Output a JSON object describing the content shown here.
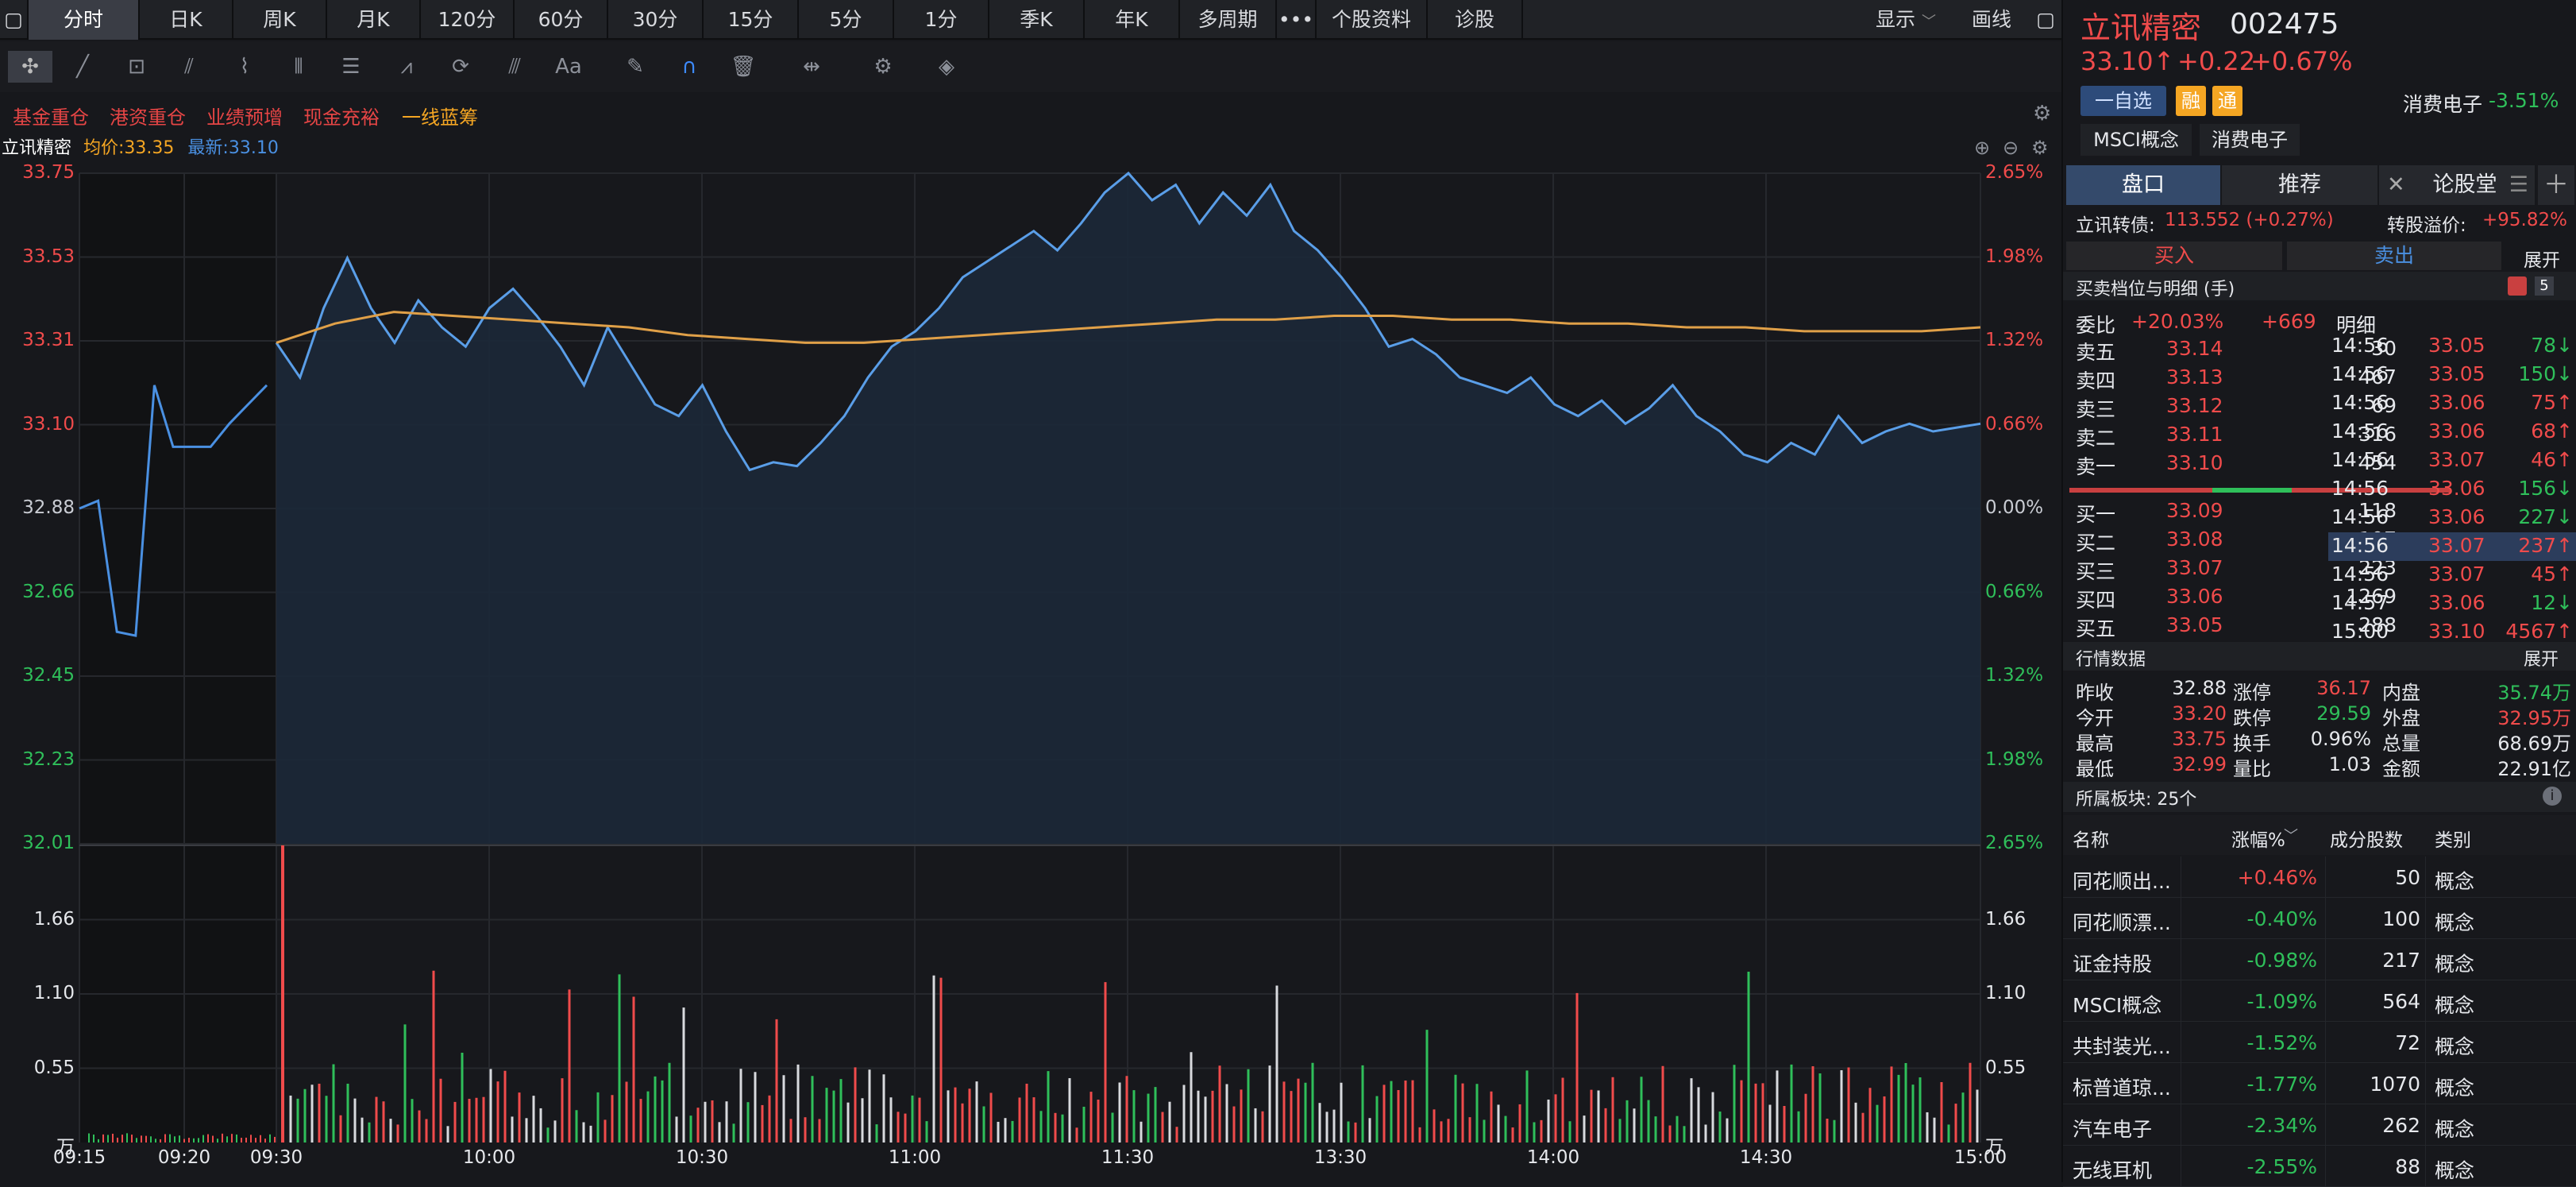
{
  "tabs": [
    "分时",
    "日K",
    "周K",
    "月K",
    "120分",
    "60分",
    "30分",
    "15分",
    "5分",
    "1分",
    "季K",
    "年K",
    "多周期",
    "•••",
    "个股资料",
    "诊股"
  ],
  "toolbar_right": {
    "display": "显示",
    "draw": "画线"
  },
  "tags": [
    "基金重仓",
    "港资重仓",
    "业绩预增",
    "现金充裕",
    "一线蓝筹"
  ],
  "chart": {
    "name": "立讯精密",
    "avg_label": "均价:33.35",
    "latest_label": "最新:33.10",
    "price_ticks": [
      "33.75",
      "33.53",
      "33.31",
      "33.10",
      "32.88",
      "32.66",
      "32.45",
      "32.23",
      "32.01"
    ],
    "pct_ticks": [
      "2.65%",
      "1.98%",
      "1.32%",
      "0.66%",
      "0.00%",
      "0.66%",
      "1.32%",
      "1.98%",
      "2.65%"
    ],
    "vol_ticks": [
      "1.66",
      "1.10",
      "0.55",
      "万"
    ],
    "time_ticks": [
      "09:15",
      "09:20",
      "09:30",
      "10:00",
      "10:30",
      "11:00",
      "11:30",
      "13:30",
      "14:00",
      "14:30",
      "15:00"
    ]
  },
  "chart_data": {
    "type": "line",
    "title": "",
    "prev_close": 32.88,
    "ylim": [
      32.01,
      33.75
    ],
    "price_series": [
      33.31,
      33.22,
      33.4,
      33.53,
      33.4,
      33.31,
      33.42,
      33.35,
      33.3,
      33.4,
      33.45,
      33.38,
      33.3,
      33.2,
      33.35,
      33.25,
      33.15,
      33.12,
      33.2,
      33.08,
      32.98,
      33.0,
      32.99,
      33.05,
      33.12,
      33.22,
      33.3,
      33.34,
      33.4,
      33.48,
      33.52,
      33.56,
      33.6,
      33.55,
      33.62,
      33.7,
      33.75,
      33.68,
      33.72,
      33.62,
      33.7,
      33.64,
      33.72,
      33.6,
      33.55,
      33.48,
      33.4,
      33.3,
      33.32,
      33.28,
      33.22,
      33.2,
      33.18,
      33.22,
      33.15,
      33.12,
      33.16,
      33.1,
      33.14,
      33.2,
      33.12,
      33.08,
      33.02,
      33.0,
      33.05,
      33.02,
      33.12,
      33.05,
      33.08,
      33.1,
      33.08,
      33.09,
      33.1
    ],
    "avg_series": [
      33.31,
      33.36,
      33.39,
      33.38,
      33.37,
      33.36,
      33.35,
      33.33,
      33.32,
      33.31,
      33.31,
      33.32,
      33.33,
      33.34,
      33.35,
      33.36,
      33.37,
      33.37,
      33.38,
      33.38,
      33.37,
      33.37,
      33.36,
      33.36,
      33.35,
      33.35,
      33.34,
      33.34,
      33.34,
      33.35
    ],
    "auction_series": [
      32.88,
      32.9,
      32.56,
      32.55,
      33.2,
      33.04,
      33.04,
      33.04,
      33.1,
      33.15,
      33.2
    ],
    "volume_max_label": "1.66"
  },
  "right": {
    "name": "立讯精密",
    "code": "002475",
    "price": "33.10↑",
    "change": "+0.22",
    "pct": "+0.67%",
    "watch_btn": "一自选",
    "rong": "融",
    "tong": "通",
    "sector": "消费电子",
    "sector_pct": "-3.51%",
    "concept1": "MSCI概念",
    "concept2": "消费电子",
    "tabs": [
      "盘口",
      "推荐",
      "论股堂"
    ],
    "bond_label": "立讯转债:",
    "bond_val": "113.552 (+0.27%)",
    "premium_label": "转股溢价:",
    "premium_val": "+95.82%",
    "buy": "买入",
    "sell": "卖出",
    "expand": "展开",
    "depth_title": "买卖档位与明细 (手)",
    "depth_n": "5",
    "weibi_label": "委比",
    "weibi_val": "+20.03%",
    "weicha": "+669",
    "detail_label": "明细",
    "asks": [
      {
        "l": "卖五",
        "p": "33.14",
        "v": "30"
      },
      {
        "l": "卖四",
        "p": "33.13",
        "v": "467"
      },
      {
        "l": "卖三",
        "p": "33.12",
        "v": "69"
      },
      {
        "l": "卖二",
        "p": "33.11",
        "v": "316"
      },
      {
        "l": "卖一",
        "p": "33.10",
        "v": "454"
      }
    ],
    "bids": [
      {
        "l": "买一",
        "p": "33.09",
        "v": "118"
      },
      {
        "l": "买二",
        "p": "33.08",
        "v": "107"
      },
      {
        "l": "买三",
        "p": "33.07",
        "v": "223"
      },
      {
        "l": "买四",
        "p": "33.06",
        "v": "1269"
      },
      {
        "l": "买五",
        "p": "33.05",
        "v": "288"
      }
    ],
    "ticks": [
      {
        "t": "14:56",
        "p": "33.05",
        "v": "78↓"
      },
      {
        "t": "14:56",
        "p": "33.05",
        "v": "150↓"
      },
      {
        "t": "14:56",
        "p": "33.06",
        "v": "75↑"
      },
      {
        "t": "14:56",
        "p": "33.06",
        "v": "68↑"
      },
      {
        "t": "14:56",
        "p": "33.07",
        "v": "46↑"
      },
      {
        "t": "14:56",
        "p": "33.06",
        "v": "156↓"
      },
      {
        "t": "14:56",
        "p": "33.06",
        "v": "227↓"
      },
      {
        "t": "14:56",
        "p": "33.07",
        "v": "237↑"
      },
      {
        "t": "14:56",
        "p": "33.07",
        "v": "45↑"
      },
      {
        "t": "14:57",
        "p": "33.06",
        "v": "12↓"
      },
      {
        "t": "15:00",
        "p": "33.10",
        "v": "4567↑"
      }
    ],
    "market_title": "行情数据",
    "stats": [
      [
        "昨收",
        "32.88",
        "涨停",
        "36.17",
        "内盘",
        "35.74万"
      ],
      [
        "今开",
        "33.20",
        "跌停",
        "29.59",
        "外盘",
        "32.95万"
      ],
      [
        "最高",
        "33.75",
        "换手",
        "0.96%",
        "总量",
        "68.69万"
      ],
      [
        "最低",
        "32.99",
        "量比",
        "1.03",
        "金额",
        "22.91亿"
      ]
    ],
    "sectors_title": "所属板块: 25个",
    "sec_headers": [
      "名称",
      "涨幅%",
      "成分股数",
      "类别"
    ],
    "sectors": [
      [
        "同花顺出...",
        "+0.46%",
        "50",
        "概念"
      ],
      [
        "同花顺漂...",
        "-0.40%",
        "100",
        "概念"
      ],
      [
        "证金持股",
        "-0.98%",
        "217",
        "概念"
      ],
      [
        "MSCI概念",
        "-1.09%",
        "564",
        "概念"
      ],
      [
        "共封装光...",
        "-1.52%",
        "72",
        "概念"
      ],
      [
        "标普道琼...",
        "-1.77%",
        "1070",
        "概念"
      ],
      [
        "汽车电子",
        "-2.34%",
        "262",
        "概念"
      ],
      [
        "无线耳机",
        "-2.55%",
        "88",
        "概念"
      ]
    ]
  }
}
